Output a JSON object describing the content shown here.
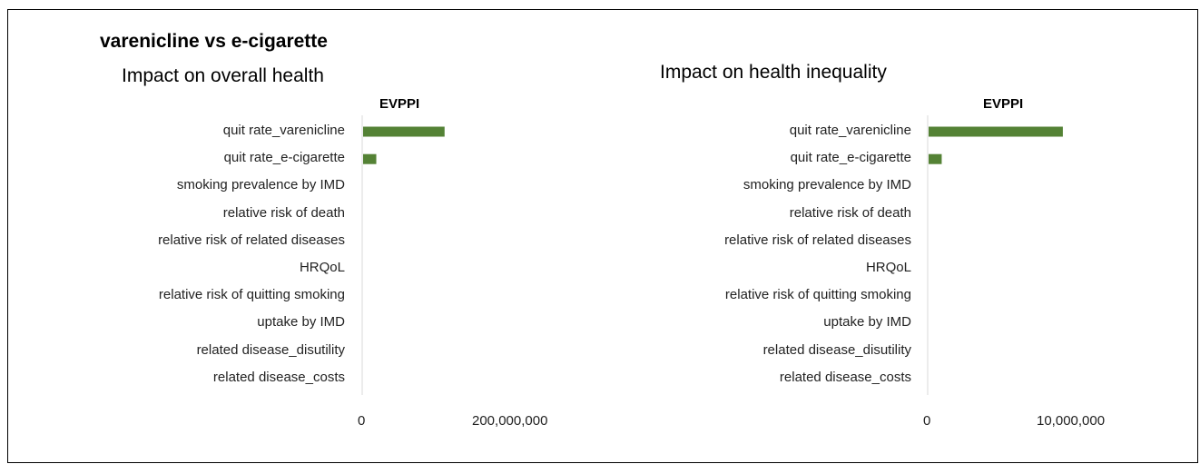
{
  "page_title": "varenicline vs e-cigarette",
  "colors": {
    "bar": "#548235",
    "axis": "#d9d9d9"
  },
  "chart_data": [
    {
      "type": "bar",
      "orientation": "horizontal",
      "title": "Impact on overall health",
      "subtitle": "EVPPI",
      "categories": [
        "quit rate_varenicline",
        "quit rate_e-cigarette",
        "smoking prevalence by IMD",
        "relative risk of death",
        "relative risk of related diseases",
        "HRQoL",
        "relative risk of quitting smoking",
        "uptake by IMD",
        "related disease_disutility",
        "related disease_costs"
      ],
      "values": [
        105000000,
        17000000,
        0,
        0,
        0,
        0,
        0,
        0,
        0,
        0
      ],
      "xlim": [
        0,
        200000000
      ],
      "xticks": [
        "0",
        "200,000,000"
      ],
      "grid": false,
      "legend": "none"
    },
    {
      "type": "bar",
      "orientation": "horizontal",
      "title": "Impact on health inequality",
      "subtitle": "EVPPI",
      "categories": [
        "quit rate_varenicline",
        "quit rate_e-cigarette",
        "smoking prevalence by IMD",
        "relative risk of death",
        "relative risk of related diseases",
        "HRQoL",
        "relative risk of quitting smoking",
        "uptake by IMD",
        "related disease_disutility",
        "related disease_costs"
      ],
      "values": [
        8700000,
        850000,
        0,
        0,
        0,
        0,
        0,
        0,
        0,
        0
      ],
      "xlim": [
        0,
        10000000
      ],
      "xticks": [
        "0",
        "10,000,000"
      ],
      "grid": false,
      "legend": "none"
    }
  ]
}
